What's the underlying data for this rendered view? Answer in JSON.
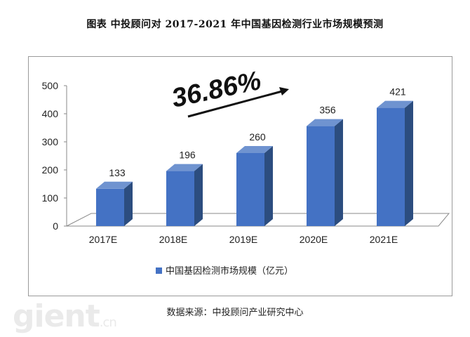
{
  "figure_title": "图表 中投顾问对 2017-2021 年中国基因检测行业市场规模预测",
  "source_note": "数据来源：中投顾问产业研究中心",
  "watermark": {
    "main": "gient",
    "suffix": ".cn"
  },
  "chart_data": {
    "type": "bar",
    "categories": [
      "2017E",
      "2018E",
      "2019E",
      "2020E",
      "2021E"
    ],
    "series": [
      {
        "name": "中国基因检测市场规模（亿元）",
        "values": [
          133,
          196,
          260,
          356,
          421
        ]
      }
    ],
    "ylim": [
      0,
      500
    ],
    "yticks": [
      0,
      100,
      200,
      300,
      400,
      500
    ],
    "annotation": "36.86%",
    "legend_position": "bottom",
    "colors": {
      "bar_front": "#4472c4",
      "bar_side": "#2c4d7f",
      "bar_top": "#6f93d0"
    }
  }
}
